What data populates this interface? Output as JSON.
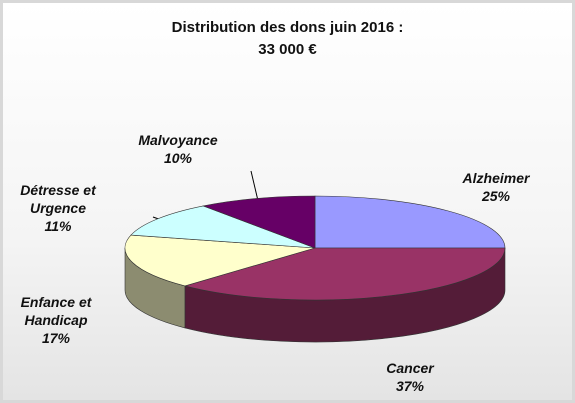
{
  "chart_data": {
    "type": "pie",
    "title": "Distribution des dons juin 2016 :",
    "subtitle": "33 000 €",
    "categories": [
      "Alzheimer",
      "Cancer",
      "Enfance et Handicap",
      "Détresse et Urgence",
      "Malvoyance"
    ],
    "values": [
      25,
      37,
      17,
      11,
      10
    ],
    "value_labels": [
      "25%",
      "37%",
      "17%",
      "11%",
      "10%"
    ],
    "colors": [
      "#9999ff",
      "#993366",
      "#ffffcc",
      "#ccffff",
      "#660066"
    ]
  }
}
